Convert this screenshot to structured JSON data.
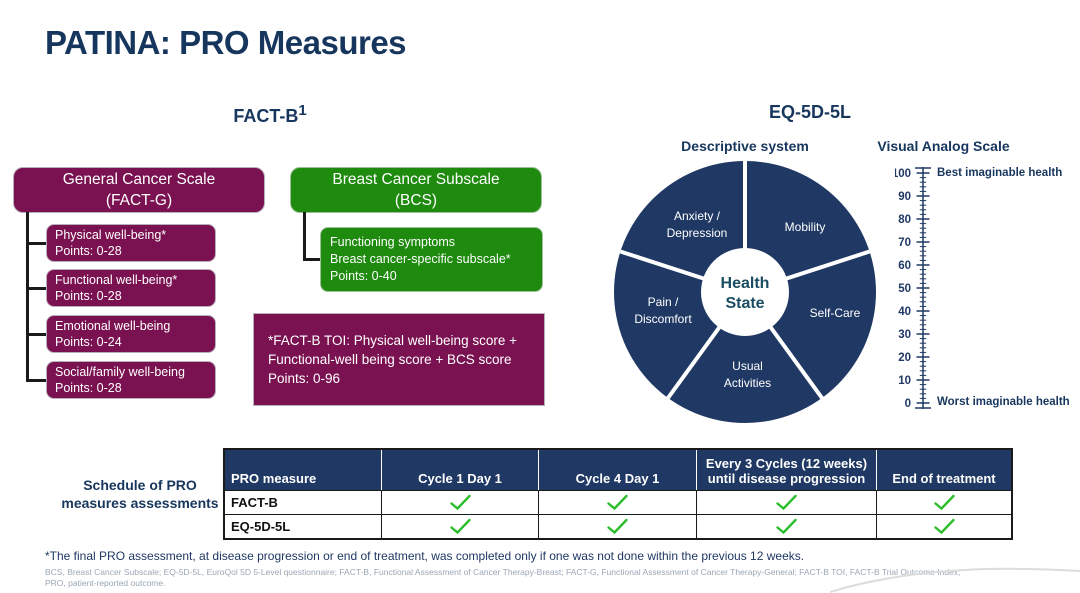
{
  "slide": {
    "title": "PATINA: PRO Measures"
  },
  "colors": {
    "navy": "#1F3864",
    "title_navy": "#17365D",
    "purple": "#7A1150",
    "green": "#1E8A0E",
    "check_green": "#2BBD2B",
    "footnote_gray": "#9AA7B5",
    "health_state_text": "#1B4D62"
  },
  "fact_b": {
    "heading": "FACT-B",
    "heading_sup": "1",
    "general_box": {
      "lines": [
        "General Cancer Scale",
        "(FACT-G)"
      ]
    },
    "subscales": [
      {
        "name": "Physical well-being*",
        "points": "Points: 0-28"
      },
      {
        "name": "Functional well-being*",
        "points": "Points: 0-28"
      },
      {
        "name": "Emotional well-being",
        "points": "Points: 0-24"
      },
      {
        "name": "Social/family well-being",
        "points": "Points: 0-28"
      }
    ],
    "bcs_box": {
      "lines": [
        "Breast Cancer Subscale",
        "(BCS)"
      ]
    },
    "bcs_sub_box": {
      "lines": [
        "Functioning symptoms",
        "Breast cancer-specific subscale*",
        "Points: 0-40"
      ]
    },
    "toi_box": {
      "lines": [
        "*FACT-B TOI: Physical well-being score +",
        "Functional-well being score + BCS score",
        "Points: 0-96"
      ]
    }
  },
  "eq5d": {
    "heading": "EQ-5D-5L",
    "descriptive_title": "Descriptive system",
    "vas_title": "Visual Analog Scale",
    "donut": {
      "center": [
        "Health",
        "State"
      ],
      "labels": {
        "anxiety": [
          "Anxiety /",
          "Depression"
        ],
        "mobility": [
          "Mobility"
        ],
        "self_care": [
          "Self-Care"
        ],
        "usual": [
          "Usual",
          "Activities"
        ],
        "pain": [
          "Pain /",
          "Discomfort"
        ]
      }
    },
    "vas": {
      "top_label": "Best imaginable health",
      "bottom_label": "Worst imaginable health",
      "ticks": [
        100,
        90,
        80,
        70,
        60,
        50,
        40,
        30,
        20,
        10,
        0
      ]
    }
  },
  "schedule": {
    "caption": [
      "Schedule of PRO",
      "measures assessments"
    ],
    "columns": [
      "PRO measure",
      "Cycle 1 Day 1",
      "Cycle 4 Day 1",
      "Every 3 Cycles (12 weeks) until disease progression",
      "End of treatment"
    ],
    "rows": [
      {
        "measure": "FACT-B",
        "checks": [
          true,
          true,
          true,
          true
        ]
      },
      {
        "measure": "EQ-5D-5L",
        "checks": [
          true,
          true,
          true,
          true
        ]
      }
    ]
  },
  "footnotes": {
    "fn1": "*The final PRO assessment, at disease progression or end of treatment, was completed only if one was not done within the previous 12 weeks.",
    "fn2": "BCS, Breast Cancer Subscale; EQ-5D-5L, EuroQol 5D 5-Level questionnaire; FACT-B, Functional Assessment of Cancer Therapy-Breast; FACT-G, Functional Assessment of Cancer Therapy-General; FACT-B TOI, FACT-B Trial Outcome Index; PRO, patient-reported outcome."
  }
}
